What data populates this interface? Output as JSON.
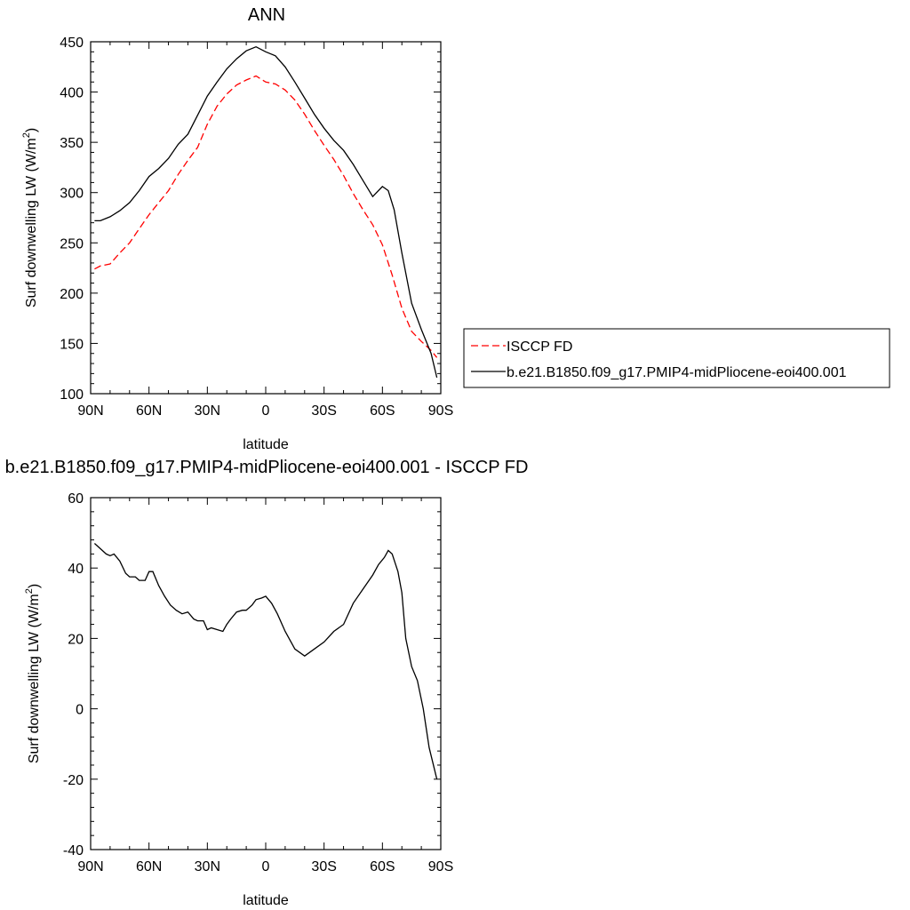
{
  "chart_data": [
    {
      "type": "line",
      "title": "ANN",
      "xlabel": "latitude",
      "ylabel": "Surf downwelling LW (W/m",
      "ylabel_sup": "2",
      "ylabel_close": ")",
      "xlim": [
        90,
        -90
      ],
      "ylim": [
        100,
        450
      ],
      "xticks": [
        90,
        60,
        30,
        0,
        -30,
        -60,
        -90
      ],
      "xtick_labels": [
        "90N",
        "60N",
        "30N",
        "0",
        "30S",
        "60S",
        "90S"
      ],
      "yticks": [
        100,
        150,
        200,
        250,
        300,
        350,
        400,
        450
      ],
      "ytick_labels": [
        "100",
        "150",
        "200",
        "250",
        "300",
        "350",
        "400",
        "450"
      ],
      "grid": false,
      "legend_position": "right",
      "series": [
        {
          "name": "ISCCP FD",
          "color": "#ff0000",
          "dashed": true,
          "x": [
            88,
            85,
            80,
            75,
            70,
            65,
            60,
            55,
            50,
            45,
            40,
            35,
            30,
            25,
            20,
            15,
            10,
            5,
            0,
            -5,
            -10,
            -15,
            -20,
            -25,
            -30,
            -35,
            -40,
            -45,
            -50,
            -55,
            -60,
            -65,
            -70,
            -75,
            -80,
            -85,
            -88
          ],
          "y": [
            224,
            227,
            229,
            240,
            250,
            264,
            278,
            290,
            302,
            318,
            332,
            345,
            368,
            386,
            398,
            407,
            412,
            416,
            410,
            408,
            402,
            392,
            378,
            362,
            347,
            333,
            317,
            299,
            283,
            268,
            248,
            218,
            185,
            162,
            152,
            143,
            136
          ]
        },
        {
          "name": "b.e21.B1850.f09_g17.PMIP4-midPliocene-eoi400.001",
          "color": "#000000",
          "dashed": false,
          "x": [
            88,
            85,
            80,
            75,
            70,
            65,
            60,
            55,
            50,
            45,
            40,
            35,
            30,
            25,
            20,
            15,
            10,
            5,
            0,
            -5,
            -10,
            -15,
            -20,
            -25,
            -30,
            -35,
            -40,
            -45,
            -50,
            -55,
            -60,
            -63,
            -66,
            -70,
            -75,
            -80,
            -85,
            -88
          ],
          "y": [
            272,
            272,
            276,
            282,
            290,
            302,
            316,
            324,
            334,
            348,
            358,
            377,
            396,
            410,
            423,
            433,
            441,
            445,
            440,
            436,
            425,
            410,
            394,
            378,
            364,
            352,
            342,
            328,
            312,
            296,
            306,
            302,
            283,
            240,
            190,
            164,
            140,
            116
          ]
        }
      ]
    },
    {
      "type": "line",
      "title": "b.e21.B1850.f09_g17.PMIP4-midPliocene-eoi400.001 - ISCCP FD",
      "xlabel": "latitude",
      "ylabel": "Surf downwelling LW (W/m",
      "ylabel_sup": "2",
      "ylabel_close": ")",
      "xlim": [
        90,
        -90
      ],
      "ylim": [
        -40,
        60
      ],
      "xticks": [
        90,
        60,
        30,
        0,
        -30,
        -60,
        -90
      ],
      "xtick_labels": [
        "90N",
        "60N",
        "30N",
        "0",
        "30S",
        "60S",
        "90S"
      ],
      "yticks": [
        -40,
        -20,
        0,
        20,
        40,
        60
      ],
      "ytick_labels": [
        "-40",
        "-20",
        "0",
        "20",
        "40",
        "60"
      ],
      "grid": false,
      "series": [
        {
          "color": "#000000",
          "dashed": false,
          "x": [
            88,
            85,
            82,
            80,
            78,
            75,
            72,
            70,
            67,
            65,
            62,
            60,
            58,
            55,
            52,
            49,
            46,
            43,
            40,
            37,
            35,
            32,
            30,
            28,
            25,
            22,
            20,
            18,
            15,
            12,
            10,
            7,
            5,
            2,
            0,
            -3,
            -6,
            -10,
            -15,
            -20,
            -25,
            -30,
            -35,
            -40,
            -45,
            -50,
            -55,
            -58,
            -61,
            -63,
            -65,
            -68,
            -70,
            -72,
            -75,
            -78,
            -81,
            -84,
            -88
          ],
          "y": [
            47,
            45.5,
            44,
            43.5,
            44,
            42,
            38.5,
            37.5,
            37.5,
            36.5,
            36.5,
            39,
            39,
            35,
            32,
            29.5,
            28,
            27,
            27.5,
            25.5,
            25,
            25,
            22.5,
            23,
            22.5,
            22,
            24,
            25.5,
            27.5,
            28,
            28,
            29.5,
            31,
            31.5,
            32,
            30,
            27,
            22,
            17,
            15,
            17,
            19,
            22,
            24,
            30,
            34,
            38,
            41,
            43,
            45,
            44,
            39,
            33,
            20,
            12,
            8,
            0,
            -11,
            -20
          ]
        }
      ]
    }
  ],
  "legend": {
    "items": [
      "ISCCP FD",
      "b.e21.B1850.f09_g17.PMIP4-midPliocene-eoi400.001"
    ]
  }
}
